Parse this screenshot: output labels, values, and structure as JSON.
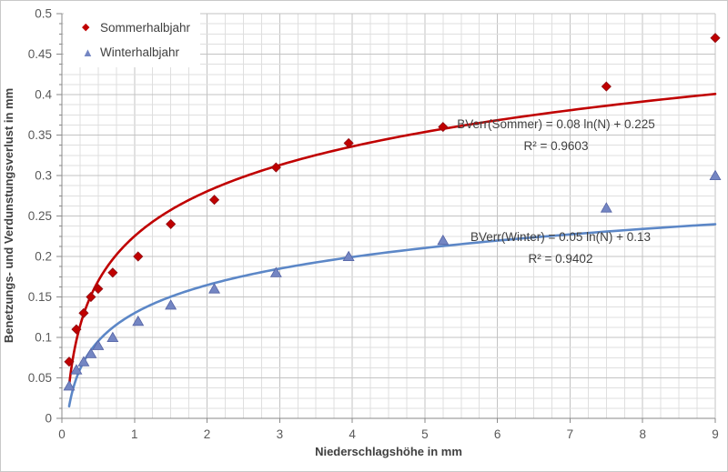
{
  "chart_data": {
    "type": "scatter",
    "title": "",
    "xlabel": "Niederschlagshöhe in mm",
    "ylabel": "Benetzungs- und Verdunstungsverlust in mm",
    "xlim": [
      0,
      9
    ],
    "ylim": [
      0,
      0.5
    ],
    "x_major_unit": 1,
    "x_minor_unit": 0.25,
    "y_major_unit": 0.05,
    "y_minor_unit": 0.0125,
    "grid": true,
    "legend_position": "top-left",
    "x_ticks": [
      {
        "v": 0,
        "label": "0"
      },
      {
        "v": 1,
        "label": "1"
      },
      {
        "v": 2,
        "label": "2"
      },
      {
        "v": 3,
        "label": "3"
      },
      {
        "v": 4,
        "label": "4"
      },
      {
        "v": 5,
        "label": "5"
      },
      {
        "v": 6,
        "label": "6"
      },
      {
        "v": 7,
        "label": "7"
      },
      {
        "v": 8,
        "label": "8"
      },
      {
        "v": 9,
        "label": "9"
      }
    ],
    "y_ticks": [
      {
        "v": 0,
        "label": "0"
      },
      {
        "v": 0.05,
        "label": "0.05"
      },
      {
        "v": 0.1,
        "label": "0.1"
      },
      {
        "v": 0.15,
        "label": "0.15"
      },
      {
        "v": 0.2,
        "label": "0.2"
      },
      {
        "v": 0.25,
        "label": "0.25"
      },
      {
        "v": 0.3,
        "label": "0.3"
      },
      {
        "v": 0.35,
        "label": "0.35"
      },
      {
        "v": 0.4,
        "label": "0.4"
      },
      {
        "v": 0.45,
        "label": "0.45"
      },
      {
        "v": 0.5,
        "label": "0.5"
      }
    ],
    "series": [
      {
        "name": "Sommerhalbjahr",
        "marker": "diamond",
        "marker_color": "#C00000",
        "line_color": "#C00000",
        "points": [
          [
            0.1,
            0.07
          ],
          [
            0.2,
            0.11
          ],
          [
            0.3,
            0.13
          ],
          [
            0.4,
            0.15
          ],
          [
            0.5,
            0.16
          ],
          [
            0.7,
            0.18
          ],
          [
            1.05,
            0.2
          ],
          [
            1.5,
            0.24
          ],
          [
            2.1,
            0.27
          ],
          [
            2.95,
            0.31
          ],
          [
            3.95,
            0.34
          ],
          [
            5.25,
            0.36
          ],
          [
            7.5,
            0.41
          ],
          [
            9,
            0.47
          ]
        ],
        "trend": {
          "type": "log",
          "a": 0.08,
          "b": 0.225,
          "x_start": 0.1,
          "x_end": 9,
          "equation": "BVerr(Sommer) = 0.08 ln(N) + 0.225",
          "r2": "R² = 0.9603"
        }
      },
      {
        "name": "Winterhalbjahr",
        "marker": "triangle",
        "marker_color": "#7486C3",
        "line_color": "#5C87C7",
        "points": [
          [
            0.1,
            0.04
          ],
          [
            0.2,
            0.06
          ],
          [
            0.3,
            0.07
          ],
          [
            0.4,
            0.08
          ],
          [
            0.5,
            0.09
          ],
          [
            0.7,
            0.1
          ],
          [
            1.05,
            0.12
          ],
          [
            1.5,
            0.14
          ],
          [
            2.1,
            0.16
          ],
          [
            2.95,
            0.18
          ],
          [
            3.95,
            0.2
          ],
          [
            5.25,
            0.22
          ],
          [
            7.5,
            0.26
          ],
          [
            9,
            0.3
          ]
        ],
        "trend": {
          "type": "log",
          "a": 0.05,
          "b": 0.13,
          "x_start": 0.1,
          "x_end": 9,
          "equation": "BVerr(Winter) = 0.05 ln(N) + 0.13",
          "r2": "R² = 0.9402"
        }
      }
    ],
    "colors": {
      "grid_minor": "#DFDFDF",
      "grid_major": "#C3C3C3",
      "axis_line": "#8A8A8A",
      "tick_text": "#595959",
      "title_text": "#404040",
      "background": "#FFFFFF"
    }
  }
}
